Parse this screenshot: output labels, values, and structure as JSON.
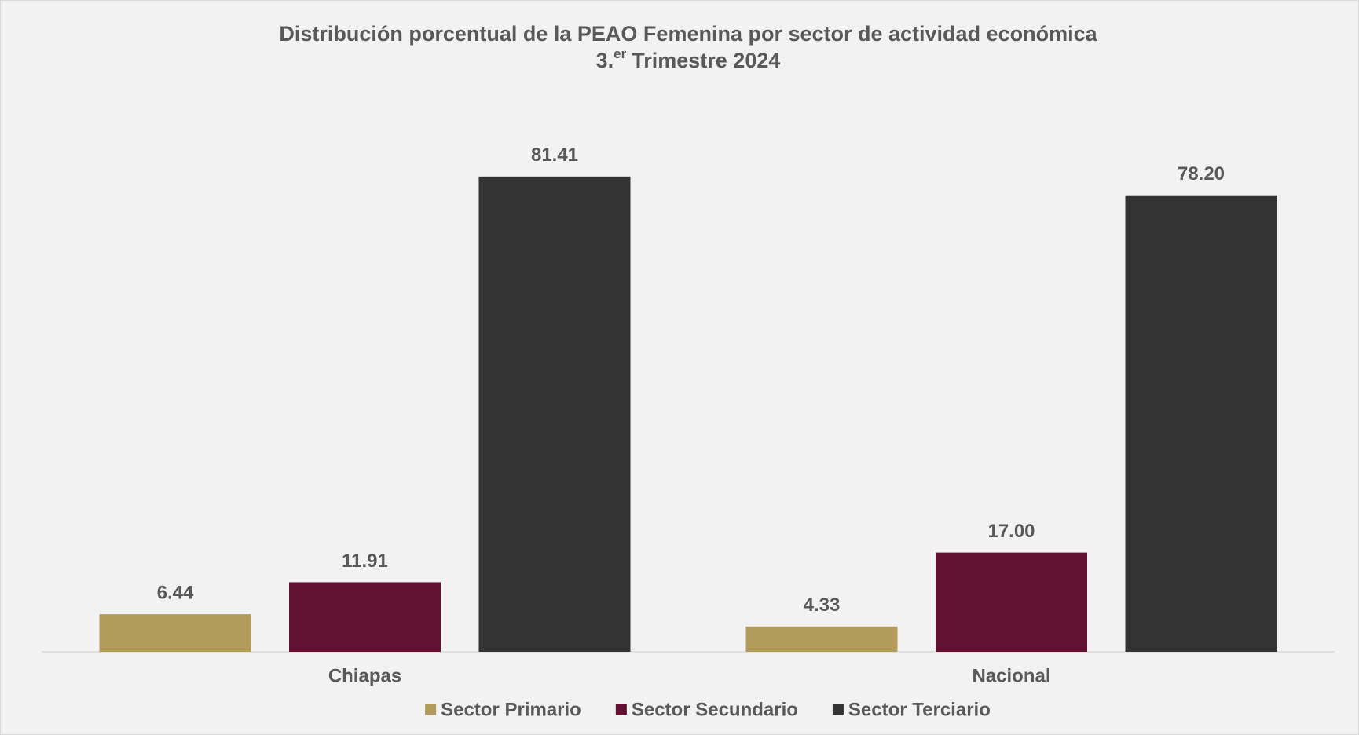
{
  "chart_data": {
    "type": "bar",
    "title": "Distribución porcentual de la PEAO Femenina por sector de actividad económica",
    "subtitle": [
      "3.",
      "er",
      "Trimestre 2024"
    ],
    "categories": [
      "Chiapas",
      "Nacional"
    ],
    "series": [
      {
        "name": "Sector Primario",
        "color": "#b39b5b",
        "values": [
          6.44,
          4.33
        ],
        "value_labels": [
          "6.44",
          "4.33"
        ]
      },
      {
        "name": "Sector Secundario",
        "color": "#621132",
        "values": [
          11.91,
          17
        ],
        "value_labels": [
          "11.91",
          "17.00"
        ]
      },
      {
        "name": "Sector Terciario",
        "color": "#333333",
        "values": [
          81.41,
          78.2
        ],
        "value_labels": [
          "81.41",
          "78.20"
        ]
      }
    ],
    "ylim": [
      0,
      90
    ],
    "legend": "bottom"
  }
}
